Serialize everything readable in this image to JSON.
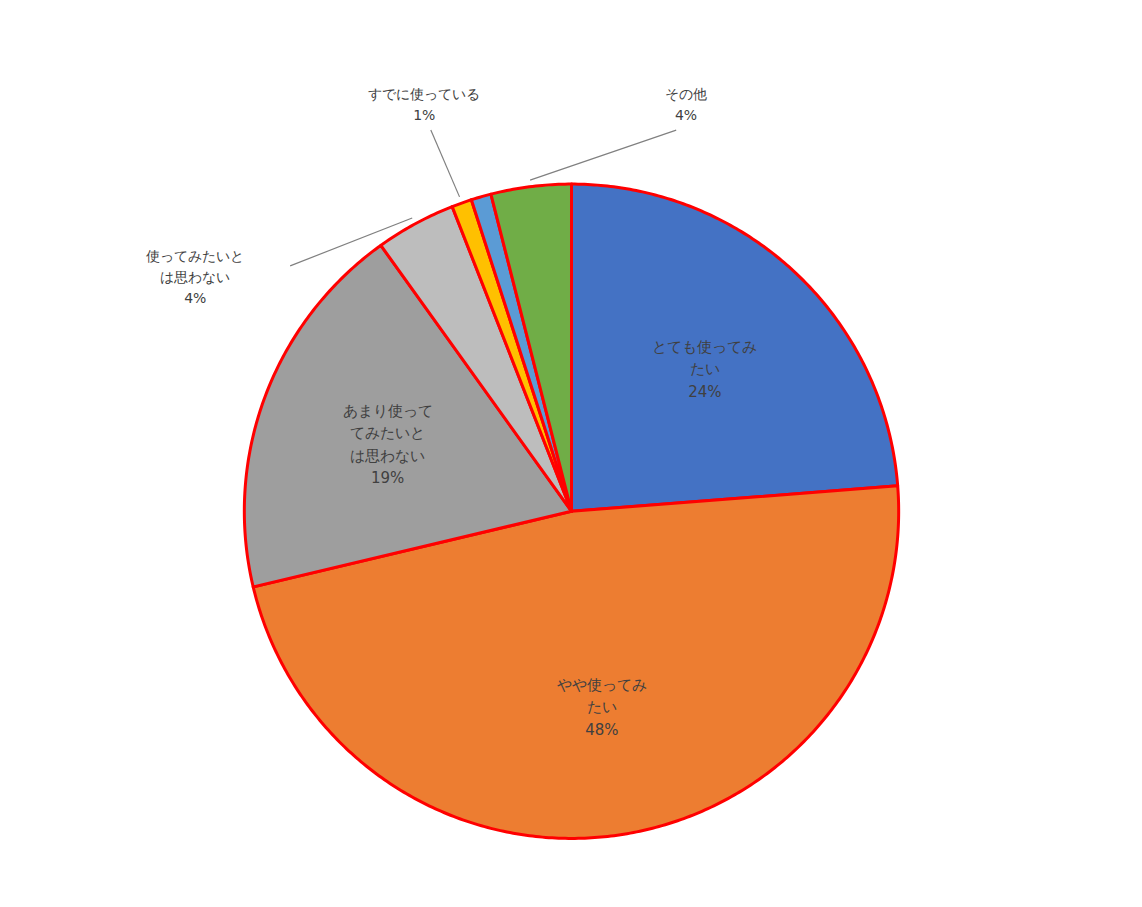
{
  "chart_data": {
    "type": "pie",
    "categories": [
      "とても使ってみ\nたい",
      "やや使ってみ\nたい",
      "あまり使って\nてみたいと\nは思わない",
      "使ってみたいと\nは思わない",
      "すでに使っている",
      null,
      "その他"
    ],
    "values": [
      24,
      48,
      19,
      4,
      1,
      1,
      4
    ],
    "value_labels": [
      "24%",
      "48%",
      "19%",
      "4%",
      "1%",
      null,
      "4%"
    ],
    "colors": [
      "#4472C4",
      "#ED7D31",
      "#9E9E9E",
      "#BDBDBD",
      "#FFC000",
      "#5B9BD5",
      "#70AD47"
    ],
    "data_labels": true
  }
}
